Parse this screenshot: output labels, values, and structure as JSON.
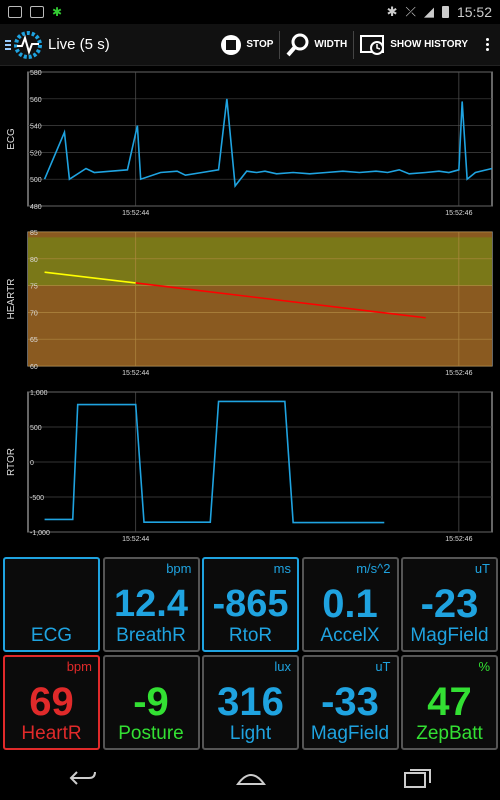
{
  "status_bar": {
    "time": "15:52"
  },
  "action_bar": {
    "title": "Live (5 s)",
    "stop_label": "STOP",
    "width_label": "WIDTH",
    "history_label": "SHOW HISTORY"
  },
  "charts": [
    {
      "id": "ecg",
      "type": "line",
      "ylabel": "ECG",
      "yticks": [
        "580",
        "560",
        "540",
        "520",
        "500",
        "480"
      ],
      "ylim": [
        480,
        580
      ],
      "xticks": [
        "15:52:44",
        "15:52:46"
      ],
      "series": [
        {
          "color": "#1fa3e0"
        }
      ]
    },
    {
      "id": "heartr",
      "type": "line",
      "ylabel": "HEARTR",
      "yticks": [
        "85",
        "80",
        "75",
        "70",
        "65",
        "60"
      ],
      "ylim": [
        60,
        85
      ],
      "xticks": [
        "15:52:44",
        "15:52:46"
      ],
      "series": [
        {
          "color": "#ffff00"
        },
        {
          "color": "#ff0000"
        }
      ]
    },
    {
      "id": "rtor",
      "type": "line",
      "ylabel": "RTOR",
      "yticks": [
        "1,000",
        "500",
        "0",
        "-500",
        "-1,000"
      ],
      "ylim": [
        -1000,
        1000
      ],
      "xticks": [
        "15:52:44",
        "15:52:46"
      ],
      "series": [
        {
          "color": "#1fa3e0"
        }
      ]
    }
  ],
  "chart_data": [
    {
      "type": "line",
      "ylabel": "ECG",
      "ylim": [
        480,
        580
      ],
      "x": [
        0,
        0.12,
        0.15,
        0.25,
        0.3,
        0.4,
        0.5,
        0.56,
        0.58,
        0.7,
        0.8,
        0.85,
        0.95,
        1.05,
        1.1,
        1.15,
        1.22,
        1.28,
        1.33,
        1.4,
        1.5,
        1.6,
        1.7,
        1.8,
        1.9,
        2.0,
        2.07,
        2.14,
        2.2,
        2.3,
        2.38,
        2.44,
        2.5,
        2.52,
        2.55,
        2.6,
        2.7
      ],
      "y": [
        500,
        535,
        500,
        508,
        505,
        506,
        507,
        540,
        500,
        505,
        506,
        503,
        505,
        507,
        560,
        495,
        506,
        505,
        506,
        504,
        505,
        504,
        505,
        506,
        505,
        506,
        505,
        507,
        504,
        505,
        506,
        505,
        507,
        558,
        500,
        505,
        508
      ],
      "xticks": [
        "15:52:44",
        "15:52:46"
      ],
      "yticks": [
        "580",
        "560",
        "540",
        "520",
        "500",
        "480"
      ]
    },
    {
      "type": "line",
      "ylabel": "HEARTR",
      "ylim": [
        60,
        85
      ],
      "series": [
        {
          "x": [
            0,
            0.55
          ],
          "values": [
            77.5,
            75.5
          ]
        },
        {
          "x": [
            0.55,
            2.3
          ],
          "values": [
            75.5,
            69
          ]
        }
      ],
      "bands": [
        [
          60,
          85
        ],
        [
          75,
          84
        ]
      ],
      "xticks": [
        "15:52:44",
        "15:52:46"
      ],
      "yticks": [
        "85",
        "80",
        "75",
        "70",
        "65",
        "60"
      ]
    },
    {
      "type": "line",
      "ylabel": "RTOR",
      "ylim": [
        -1000,
        1000
      ],
      "x": [
        0,
        0.17,
        0.2,
        0.55,
        0.6,
        1.0,
        1.05,
        1.45,
        1.5,
        2.05
      ],
      "y": [
        -820,
        -820,
        820,
        820,
        -860,
        -860,
        865,
        865,
        -865,
        -865
      ],
      "xticks": [
        "15:52:44",
        "15:52:46"
      ],
      "yticks": [
        "1,000",
        "500",
        "0",
        "-500",
        "-1,000"
      ]
    }
  ],
  "tiles": [
    {
      "label": "ECG",
      "unit": "",
      "value": "",
      "color": "#1fa3e0",
      "border": "blue"
    },
    {
      "label": "BreathR",
      "unit": "bpm",
      "value": "12.4",
      "color": "#1fa3e0",
      "border": "grey"
    },
    {
      "label": "RtoR",
      "unit": "ms",
      "value": "-865",
      "color": "#1fa3e0",
      "border": "blue"
    },
    {
      "label": "AccelX",
      "unit": "m/s^2",
      "value": "0.1",
      "color": "#1fa3e0",
      "border": "grey"
    },
    {
      "label": "MagField",
      "unit": "uT",
      "value": "-23",
      "color": "#1fa3e0",
      "border": "grey"
    },
    {
      "label": "HeartR",
      "unit": "bpm",
      "value": "69",
      "color": "#e02a2a",
      "border": "red"
    },
    {
      "label": "Posture",
      "unit": "",
      "value": "-9",
      "color": "#33e033",
      "border": "grey"
    },
    {
      "label": "Light",
      "unit": "lux",
      "value": "316",
      "color": "#1fa3e0",
      "border": "grey"
    },
    {
      "label": "MagField",
      "unit": "uT",
      "value": "-33",
      "color": "#1fa3e0",
      "border": "grey"
    },
    {
      "label": "ZepBatt",
      "unit": "%",
      "value": "47",
      "color": "#33e033",
      "border": "grey"
    }
  ]
}
